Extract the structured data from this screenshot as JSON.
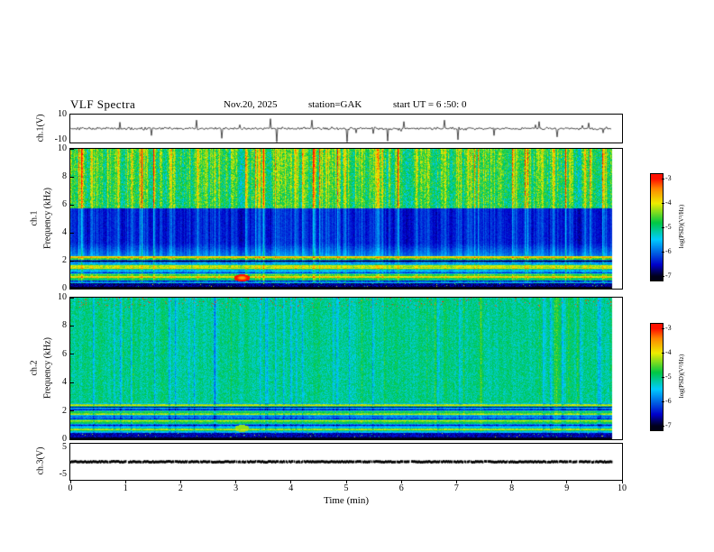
{
  "header": {
    "title": "VLF Spectra",
    "date": "Nov.20, 2025",
    "station": "station=GAK",
    "start_ut": "start UT =  6 :50: 0"
  },
  "panels": {
    "ch1_wave": {
      "label": "ch.1(V)",
      "ymax": "10",
      "ymin": "-10"
    },
    "spec1": {
      "channel": "ch.1",
      "ylabel": "Frequency (kHz)",
      "yticks": [
        "10",
        "8",
        "6",
        "4",
        "2",
        "0"
      ]
    },
    "spec2": {
      "channel": "ch.2",
      "ylabel": "Frequency (kHz)",
      "yticks": [
        "10",
        "8",
        "6",
        "4",
        "2",
        "0"
      ]
    },
    "ch3": {
      "label": "ch.3(V)",
      "ymax": "5",
      "ymin": "-5"
    }
  },
  "xaxis": {
    "label": "Time (min)",
    "ticks": [
      "0",
      "1",
      "2",
      "3",
      "4",
      "5",
      "6",
      "7",
      "8",
      "9",
      "10"
    ]
  },
  "colorbar": {
    "label": "log(PSD)(V²/Hz)",
    "ticks": [
      "-3",
      "-4",
      "-5",
      "-6",
      "-7"
    ],
    "gradient": [
      {
        "p": 0.0,
        "c": "#000018"
      },
      {
        "p": 0.12,
        "c": "#0000cc"
      },
      {
        "p": 0.38,
        "c": "#00ccff"
      },
      {
        "p": 0.55,
        "c": "#00c845"
      },
      {
        "p": 0.75,
        "c": "#eeee00"
      },
      {
        "p": 0.9,
        "c": "#ff8800"
      },
      {
        "p": 1.0,
        "c": "#ff1100"
      }
    ]
  },
  "chart_data": [
    {
      "type": "line",
      "title": "ch.1(V) time series",
      "xlabel": "Time (min)",
      "ylabel": "ch.1(V)",
      "xlim": [
        0,
        10
      ],
      "ylim": [
        -10,
        10
      ],
      "description": "Low-amplitude noise around 0 V (about ±1 V) with sparse impulsive spikes reaching roughly ±8 V; record extends to about 9.8 min."
    },
    {
      "type": "heatmap",
      "title": "ch.1 spectrogram",
      "xlabel": "Time (min)",
      "ylabel": "Frequency (kHz)",
      "xlim": [
        0,
        10
      ],
      "ylim": [
        0,
        10
      ],
      "zlabel": "log(PSD)(V²/Hz)",
      "zlim": [
        -7,
        -3
      ],
      "bands": [
        {
          "freq_khz": [
            6,
            10
          ],
          "level_log_psd": [
            -5,
            -4
          ],
          "description": "green background with dense vertical yellow/red bursts up to -3"
        },
        {
          "freq_khz": [
            2.4,
            6
          ],
          "level_log_psd": [
            -7,
            -6
          ],
          "description": "dark blue/black band crossed by sparse vertical green streaks"
        },
        {
          "freq_khz": [
            0.5,
            2.4
          ],
          "level_log_psd": [
            -6,
            -4
          ],
          "description": "strong horizontal banding of cyan/green/yellow lines"
        },
        {
          "freq_khz": [
            0,
            0.5
          ],
          "level_log_psd": [
            -7,
            -6.5
          ],
          "description": "near-black band, bright yellow patch near 3.1 min at ~0.8 kHz"
        }
      ]
    },
    {
      "type": "heatmap",
      "title": "ch.2 spectrogram",
      "xlabel": "Time (min)",
      "ylabel": "Frequency (kHz)",
      "xlim": [
        0,
        10
      ],
      "ylim": [
        0,
        10
      ],
      "zlabel": "log(PSD)(V²/Hz)",
      "zlim": [
        -7,
        -3
      ],
      "bands": [
        {
          "freq_khz": [
            2.6,
            10
          ],
          "level_log_psd": [
            -5.5,
            -4.5
          ],
          "description": "green/cyan texture with darker blue vertical streaks, occasional red specks near 10 kHz"
        },
        {
          "freq_khz": [
            0.5,
            2.6
          ],
          "level_log_psd": [
            -6,
            -4.5
          ],
          "description": "horizontal banded cyan/green lines with dark interleaves"
        },
        {
          "freq_khz": [
            0,
            0.5
          ],
          "level_log_psd": [
            -7,
            -6.5
          ],
          "description": "near-black band with isolated bright green patch near 3.1 min"
        }
      ]
    },
    {
      "type": "line",
      "title": "ch.3(V) time series",
      "xlabel": "Time (min)",
      "ylabel": "ch.3(V)",
      "xlim": [
        0,
        10
      ],
      "ylim": [
        -5,
        5
      ],
      "description": "Constant ~0 V dense black trace across the whole record."
    }
  ]
}
